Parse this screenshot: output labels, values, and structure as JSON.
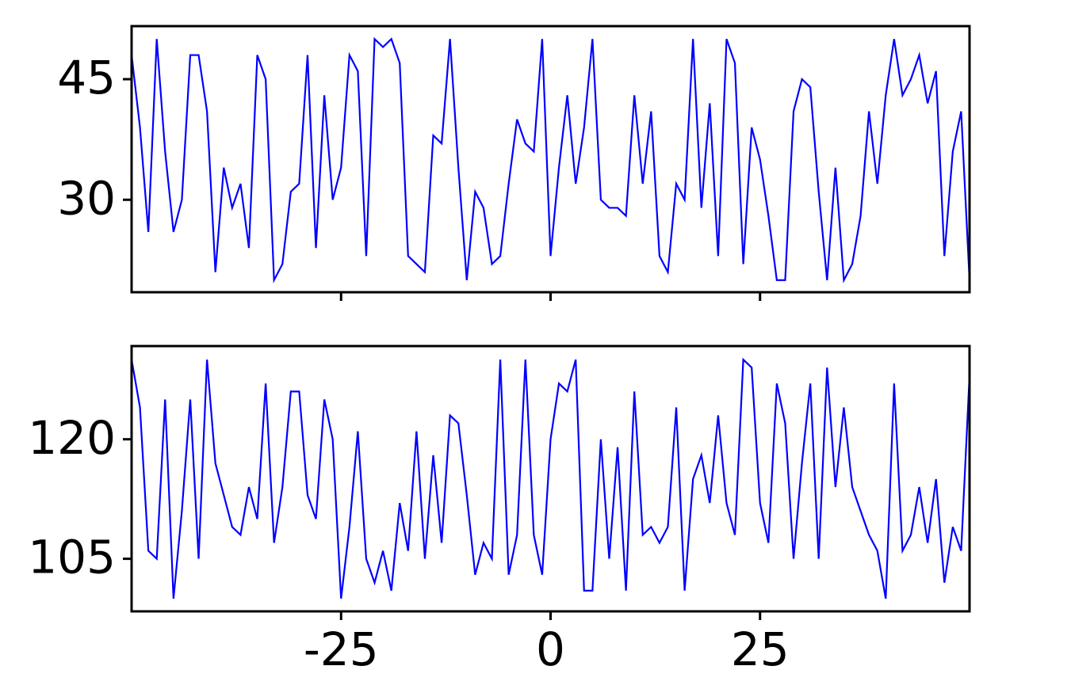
{
  "chart_data": [
    {
      "type": "line",
      "xlim": [
        -50,
        50
      ],
      "ylim": [
        18.5,
        51.6
      ],
      "yticks": [
        30,
        45
      ],
      "x": [
        -50,
        -49,
        -48,
        -47,
        -46,
        -45,
        -44,
        -43,
        -42,
        -41,
        -40,
        -39,
        -38,
        -37,
        -36,
        -35,
        -34,
        -33,
        -32,
        -31,
        -30,
        -29,
        -28,
        -27,
        -26,
        -25,
        -24,
        -23,
        -22,
        -21,
        -20,
        -19,
        -18,
        -17,
        -16,
        -15,
        -14,
        -13,
        -12,
        -11,
        -10,
        -9,
        -8,
        -7,
        -6,
        -5,
        -4,
        -3,
        -2,
        -1,
        0,
        1,
        2,
        3,
        4,
        5,
        6,
        7,
        8,
        9,
        10,
        11,
        12,
        13,
        14,
        15,
        16,
        17,
        18,
        19,
        20,
        21,
        22,
        23,
        24,
        25,
        26,
        27,
        28,
        29,
        30,
        31,
        32,
        33,
        34,
        35,
        36,
        37,
        38,
        39,
        40,
        41,
        42,
        43,
        44,
        45,
        46,
        47,
        48,
        49,
        50
      ],
      "color": "#0000ff",
      "values": [
        48,
        39,
        26,
        50,
        36,
        26,
        30,
        48,
        48,
        41,
        21,
        34,
        29,
        32,
        24,
        48,
        45,
        20,
        22,
        31,
        32,
        48,
        24,
        43,
        30,
        34,
        48,
        46,
        23,
        50,
        49,
        50,
        47,
        23,
        22,
        21,
        38,
        37,
        50,
        34,
        20,
        31,
        29,
        22,
        23,
        32,
        40,
        37,
        36,
        50,
        23,
        34,
        43,
        32,
        39,
        50,
        30,
        29,
        29,
        28,
        43,
        32,
        41,
        23,
        21,
        32,
        30,
        50,
        29,
        42,
        23,
        50,
        47,
        22,
        39,
        35,
        28,
        20,
        20,
        41,
        45,
        44,
        31,
        20,
        34,
        20,
        22,
        28,
        41,
        32,
        43,
        50,
        43,
        45,
        48,
        42,
        46,
        23,
        36,
        41,
        20
      ]
    },
    {
      "type": "line",
      "xlim": [
        -50,
        50
      ],
      "ylim": [
        98.4,
        131.7
      ],
      "yticks": [
        105,
        120
      ],
      "xticks": [
        -25,
        0,
        25
      ],
      "x": [
        -50,
        -49,
        -48,
        -47,
        -46,
        -45,
        -44,
        -43,
        -42,
        -41,
        -40,
        -39,
        -38,
        -37,
        -36,
        -35,
        -34,
        -33,
        -32,
        -31,
        -30,
        -29,
        -28,
        -27,
        -26,
        -25,
        -24,
        -23,
        -22,
        -21,
        -20,
        -19,
        -18,
        -17,
        -16,
        -15,
        -14,
        -13,
        -12,
        -11,
        -10,
        -9,
        -8,
        -7,
        -6,
        -5,
        -4,
        -3,
        -2,
        -1,
        0,
        1,
        2,
        3,
        4,
        5,
        6,
        7,
        8,
        9,
        10,
        11,
        12,
        13,
        14,
        15,
        16,
        17,
        18,
        19,
        20,
        21,
        22,
        23,
        24,
        25,
        26,
        27,
        28,
        29,
        30,
        31,
        32,
        33,
        34,
        35,
        36,
        37,
        38,
        39,
        40,
        41,
        42,
        43,
        44,
        45,
        46,
        47,
        48,
        49,
        50
      ],
      "color": "#0000ff",
      "values": [
        130,
        124,
        106,
        105,
        125,
        100,
        111,
        125,
        105,
        130,
        117,
        113,
        109,
        108,
        114,
        110,
        127,
        107,
        114,
        126,
        126,
        113,
        110,
        125,
        120,
        100,
        109,
        121,
        105,
        102,
        106,
        101,
        112,
        106,
        121,
        105,
        118,
        107,
        123,
        122,
        113,
        103,
        107,
        105,
        130,
        103,
        108,
        130,
        108,
        103,
        120,
        127,
        126,
        130,
        101,
        101,
        120,
        105,
        119,
        101,
        126,
        108,
        109,
        107,
        109,
        124,
        101,
        115,
        118,
        112,
        123,
        112,
        108,
        130,
        129,
        112,
        107,
        127,
        122,
        105,
        117,
        127,
        105,
        129,
        114,
        124,
        114,
        111,
        108,
        106,
        100,
        127,
        106,
        108,
        114,
        107,
        115,
        102,
        109,
        106,
        128
      ]
    }
  ]
}
